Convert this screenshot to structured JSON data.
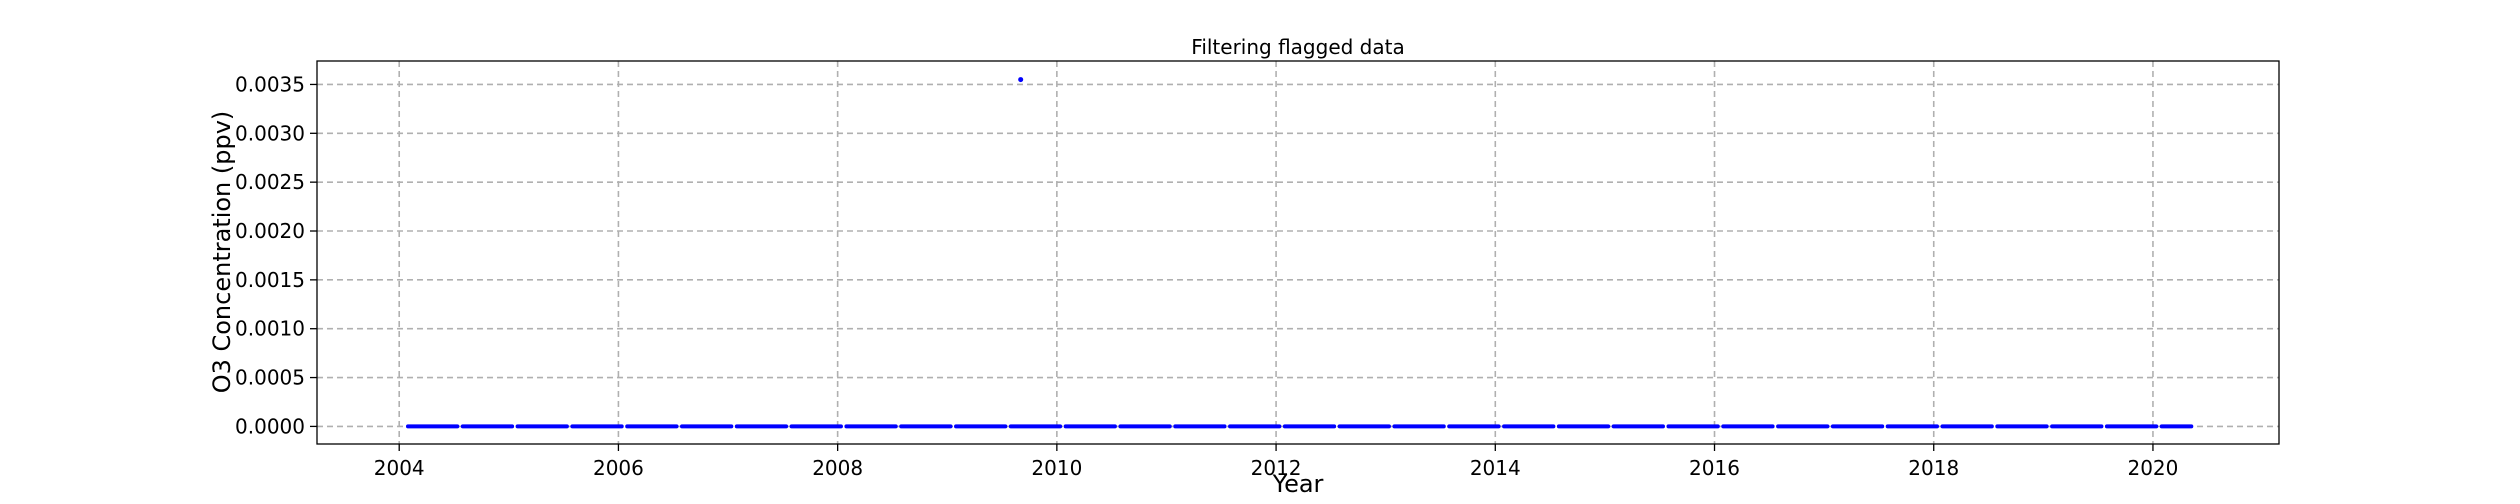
{
  "chart_data": {
    "type": "scatter",
    "title": "Filtering flagged data",
    "xlabel": "Year",
    "ylabel": "O3 Concentration (ppv)",
    "xlim": [
      2003.25,
      2021.15
    ],
    "ylim": [
      -0.00018,
      0.00374
    ],
    "x_ticks": [
      2004,
      2006,
      2008,
      2010,
      2012,
      2014,
      2016,
      2018,
      2020
    ],
    "x_tick_labels": [
      "2004",
      "2006",
      "2008",
      "2010",
      "2012",
      "2014",
      "2016",
      "2018",
      "2020"
    ],
    "y_ticks": [
      0.0,
      0.0005,
      0.001,
      0.0015,
      0.002,
      0.0025,
      0.003,
      0.0035
    ],
    "y_tick_labels": [
      "0.0000",
      "0.0005",
      "0.0010",
      "0.0015",
      "0.0020",
      "0.0025",
      "0.0030",
      "0.0035"
    ],
    "grid": true,
    "marker_color": "#0000ff",
    "baseline_series": {
      "x_start": 2004.08,
      "x_end": 2020.35,
      "y": 0.0,
      "gap_every_years": 0.5
    },
    "outliers": [
      {
        "x": 2009.67,
        "y": 0.00355
      }
    ]
  }
}
